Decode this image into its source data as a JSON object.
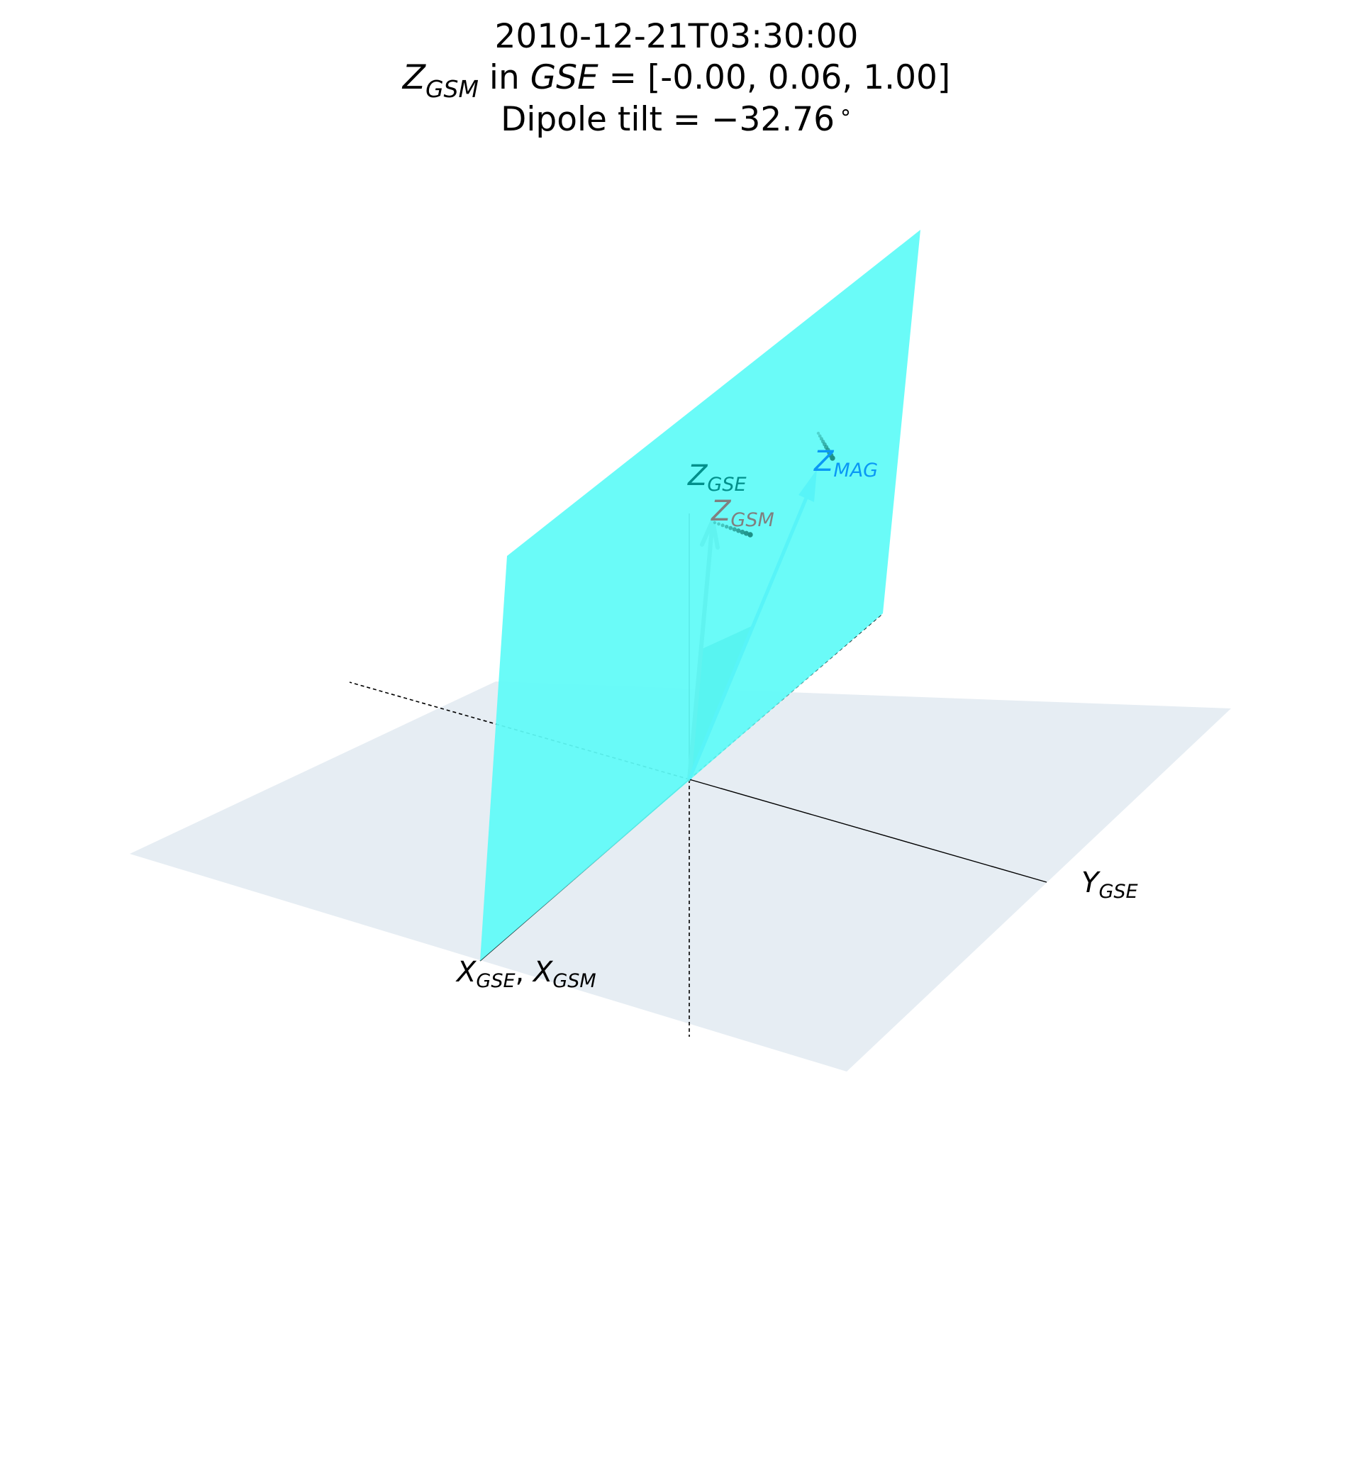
{
  "title": {
    "timestamp": "2010-12-21T03:30:00",
    "zgsm_symbol": "Z",
    "zgsm_subscript": "GSM",
    "in_text": " in ",
    "gse_symbol": "GSE",
    "vector_text": " = [-0.00, 0.06, 1.00]",
    "dipole_text": "Dipole tilt = −32.76",
    "degree_symbol": "∘"
  },
  "labels": {
    "zgse": {
      "symbol": "Z",
      "subscript": "GSE"
    },
    "zgsm": {
      "symbol": "Z",
      "subscript": "GSM"
    },
    "zmag": {
      "symbol": "Z",
      "subscript": "MAG"
    },
    "ygse": {
      "symbol": "Y",
      "subscript": "GSE"
    },
    "xgse": {
      "symbol": "X",
      "subscript": "GSE"
    },
    "separator": ", ",
    "xgsm": {
      "symbol": "X",
      "subscript": "GSM"
    }
  },
  "colors": {
    "ground_plane": "#e6edf3",
    "meridian_plane": "#5ffbf8",
    "tilt_wedge": "#009a96",
    "zgsm_arrow": "#6f8b88",
    "zmag_arrow": "#0a98f5",
    "zgse_label": "#008f8b",
    "zgsm_label": "#808080",
    "zmag_label": "#0a98f5"
  },
  "values": {
    "zgsm_in_gse": [
      -0.0,
      0.06,
      1.0
    ],
    "dipole_tilt_deg": -32.76
  }
}
